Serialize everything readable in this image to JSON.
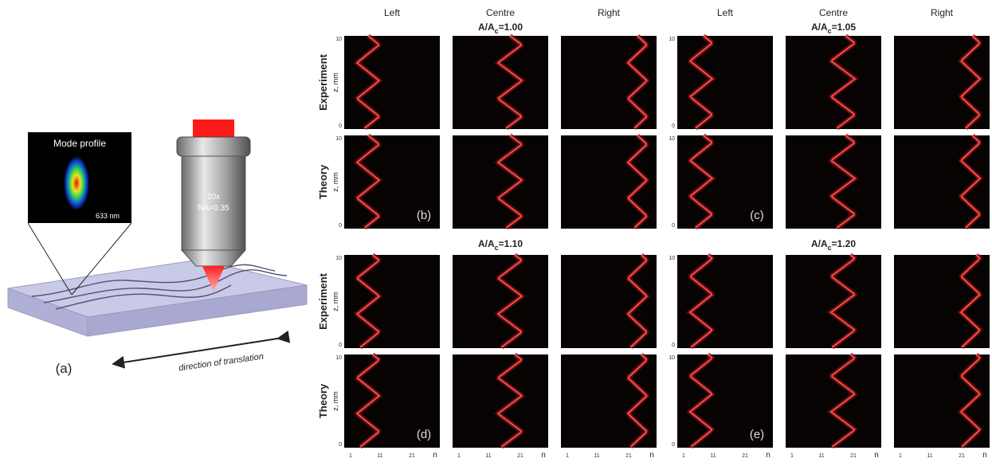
{
  "figure": {
    "panel_a": {
      "label": "(a)",
      "mode_profile": "Mode profile",
      "wavelength": "633 nm",
      "objective": [
        "20x",
        "NA=0.35"
      ],
      "direction": "direction of translation"
    },
    "columns": [
      "Left",
      "Centre",
      "Right"
    ],
    "rows": [
      "Experiment",
      "Theory"
    ],
    "z_axis": "z, mm",
    "yticks": [
      10,
      0
    ],
    "xticks": [
      1,
      11,
      21
    ],
    "x_axis": "n",
    "groups": [
      {
        "label": "(b)",
        "ratio": {
          "base": "A/A",
          "sub": "c",
          "value": "=1.00"
        }
      },
      {
        "label": "(c)",
        "ratio": {
          "base": "A/A",
          "sub": "c",
          "value": "=1.05"
        }
      },
      {
        "label": "(d)",
        "ratio": {
          "base": "A/A",
          "sub": "c",
          "value": "=1.10"
        }
      },
      {
        "label": "(e)",
        "ratio": {
          "base": "A/A",
          "sub": "c",
          "value": "=1.20"
        }
      }
    ]
  }
}
